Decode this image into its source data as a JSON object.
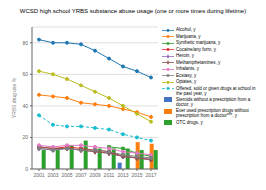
{
  "chart_data": {
    "type": "bar",
    "title": "WCSD high school YRBS substance abuse usage (one or more times during lifetime)",
    "ylabel": "YRBS drug use %",
    "categories": [
      "2001",
      "2003",
      "2005",
      "2007",
      "2009",
      "2011",
      "2013",
      "2015",
      "2017"
    ],
    "series": [
      {
        "name": "Alcohol, y",
        "type": "line",
        "color": "#1f77b4",
        "marker": "circle",
        "line_style": "solid",
        "values": [
          82,
          80,
          80,
          79,
          75,
          70,
          65,
          62,
          58
        ]
      },
      {
        "name": "Marijuana, y",
        "type": "line",
        "color": "#ff7f0e",
        "marker": "circle",
        "line_style": "solid",
        "values": [
          47,
          46,
          45,
          42,
          41,
          40,
          38,
          36,
          33
        ]
      },
      {
        "name": "Synthetic marijuana, y",
        "type": "line",
        "color": "#2ca02c",
        "marker": "square",
        "line_style": "solid",
        "values": [
          null,
          null,
          null,
          null,
          null,
          14,
          13,
          10,
          8
        ]
      },
      {
        "name": "Cocaine/any form, y",
        "type": "line",
        "color": "#d62728",
        "marker": "square",
        "line_style": "solid",
        "values": [
          14,
          13,
          14,
          13,
          12,
          11,
          8,
          7,
          6
        ]
      },
      {
        "name": "Heroin, y",
        "type": "line",
        "color": "#9467bd",
        "marker": "diamond",
        "line_style": "solid",
        "values": [
          13,
          12,
          13,
          12,
          11,
          10,
          8,
          7,
          6
        ]
      },
      {
        "name": "Methamphetamines, y",
        "type": "line",
        "color": "#8c564b",
        "marker": "diamond",
        "line_style": "solid",
        "values": [
          14,
          13,
          13,
          12,
          11,
          10,
          8,
          7,
          6
        ]
      },
      {
        "name": "Inhalants, y",
        "type": "line",
        "color": "#e377c2",
        "marker": "circle",
        "line_style": "solid",
        "values": [
          15,
          14,
          15,
          15,
          14,
          13,
          11,
          10,
          9
        ]
      },
      {
        "name": "Ecstasy, y",
        "type": "line",
        "color": "#7f7f7f",
        "marker": "square",
        "line_style": "solid",
        "values": [
          13,
          12,
          13,
          12,
          12,
          11,
          9,
          8,
          7
        ]
      },
      {
        "name": "Opiates, y",
        "type": "line",
        "color": "#bcbd22",
        "marker": "circle",
        "line_style": "solid",
        "values": [
          62,
          60,
          57,
          53,
          49,
          45,
          40,
          35,
          30
        ]
      },
      {
        "name": "Offered, sold or given drugs at school in the past year, y",
        "type": "line",
        "color": "#17becf",
        "marker": "circle",
        "line_style": "dashed",
        "values": [
          34,
          28,
          27,
          27,
          26,
          25,
          22,
          20,
          18
        ]
      },
      {
        "name": "Steroids without a prescription from a doctor, y",
        "type": "bar",
        "color": "#4472c4",
        "values": [
          null,
          null,
          null,
          null,
          null,
          null,
          4,
          null,
          null
        ]
      },
      {
        "name": "Ever used prescription drugs without prescription from a doctor***, y",
        "type": "bar",
        "color": "#ff7f0e",
        "values": [
          null,
          null,
          null,
          null,
          null,
          null,
          null,
          17,
          16
        ]
      },
      {
        "name": "OTC drugs, y",
        "type": "bar",
        "color": "#2ca02c",
        "values": [
          12,
          12,
          15,
          18,
          13,
          13,
          13,
          12,
          12
        ]
      }
    ],
    "ylim": [
      0,
      90
    ],
    "yticks": [
      0,
      20,
      40,
      60,
      80
    ],
    "grid": true,
    "legend": "right"
  }
}
